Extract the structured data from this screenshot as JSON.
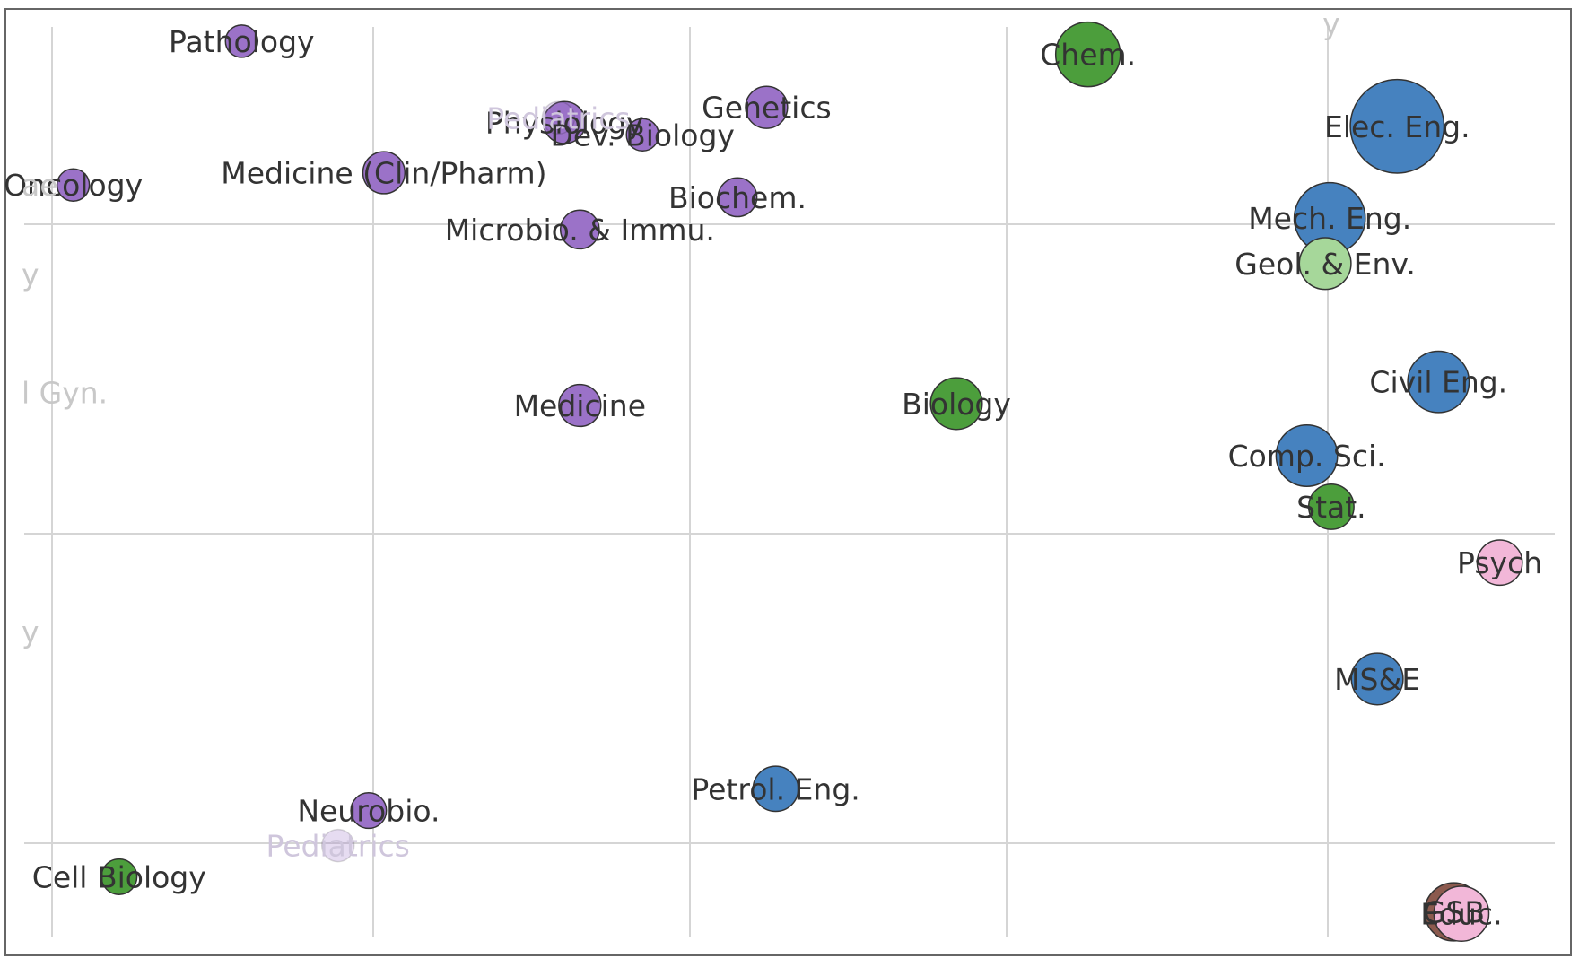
{
  "chart_data": {
    "type": "scatter",
    "title": "",
    "xlabel": "",
    "ylabel": "",
    "xlim": [
      0,
      100
    ],
    "ylim": [
      0,
      100
    ],
    "grid": true,
    "legend": "none",
    "group_colors": {
      "medicine": "#9b72c8",
      "engineering": "#4682bf",
      "science": "#4c9e3c",
      "earth": "#a6d79a",
      "psychology": "#f2b7d8",
      "business": "#8c5a4e"
    },
    "points": [
      {
        "label": "Pathology",
        "x": 14.2,
        "y": 96.6,
        "size": 1.0,
        "group": "medicine"
      },
      {
        "label": "Physiology",
        "x": 35.3,
        "y": 88.0,
        "size": 1.3,
        "group": "medicine"
      },
      {
        "label": "Pediatrics",
        "x": 34.9,
        "y": 88.5,
        "size": 1.0,
        "group": "medicine",
        "faded": true
      },
      {
        "label": "Dev. Biology",
        "x": 40.4,
        "y": 86.7,
        "size": 1.0,
        "group": "medicine"
      },
      {
        "label": "Genetics",
        "x": 48.5,
        "y": 89.6,
        "size": 1.3,
        "group": "medicine"
      },
      {
        "label": "Oncology",
        "x": 3.2,
        "y": 81.4,
        "size": 1.0,
        "group": "medicine"
      },
      {
        "label": "Medicine (Clin/Pharm)",
        "x": 23.5,
        "y": 82.7,
        "size": 1.3,
        "group": "medicine"
      },
      {
        "label": "Biochem.",
        "x": 46.6,
        "y": 80.1,
        "size": 1.2,
        "group": "medicine"
      },
      {
        "label": "Microbio. & Immu.",
        "x": 36.3,
        "y": 76.7,
        "size": 1.2,
        "group": "medicine"
      },
      {
        "label": "Medicine",
        "x": 36.3,
        "y": 58.1,
        "size": 1.3,
        "group": "medicine"
      },
      {
        "label": "Neurobio.",
        "x": 22.5,
        "y": 15.3,
        "size": 1.1,
        "group": "medicine"
      },
      {
        "label": "Pediatrics",
        "x": 20.5,
        "y": 11.6,
        "size": 1.0,
        "group": "medicine",
        "faded": true
      },
      {
        "label": "Chem.",
        "x": 69.5,
        "y": 95.2,
        "size": 2.0,
        "group": "science"
      },
      {
        "label": "Biology",
        "x": 60.9,
        "y": 58.3,
        "size": 1.6,
        "group": "science"
      },
      {
        "label": "Stat.",
        "x": 85.4,
        "y": 47.4,
        "size": 1.4,
        "group": "science"
      },
      {
        "label": "Cell Biology",
        "x": 6.2,
        "y": 8.3,
        "size": 1.1,
        "group": "science"
      },
      {
        "label": "Elec. Eng.",
        "x": 89.7,
        "y": 87.6,
        "size": 2.9,
        "group": "engineering"
      },
      {
        "label": "Mech. Eng.",
        "x": 85.3,
        "y": 77.9,
        "size": 2.2,
        "group": "engineering"
      },
      {
        "label": "Civil Eng.",
        "x": 92.4,
        "y": 60.6,
        "size": 1.9,
        "group": "engineering"
      },
      {
        "label": "Comp. Sci.",
        "x": 83.8,
        "y": 52.8,
        "size": 1.9,
        "group": "engineering"
      },
      {
        "label": "MS&E",
        "x": 88.4,
        "y": 29.2,
        "size": 1.6,
        "group": "engineering"
      },
      {
        "label": "Petrol. Eng.",
        "x": 49.1,
        "y": 17.6,
        "size": 1.4,
        "group": "engineering"
      },
      {
        "label": "Geol. & Env.",
        "x": 85.0,
        "y": 73.1,
        "size": 1.6,
        "group": "earth"
      },
      {
        "label": "Psych",
        "x": 96.4,
        "y": 41.5,
        "size": 1.4,
        "group": "psychology"
      },
      {
        "label": "GSB",
        "x": 93.4,
        "y": 4.6,
        "size": 1.8,
        "group": "business"
      },
      {
        "label": "Educ.",
        "x": 93.9,
        "y": 4.4,
        "size": 1.7,
        "group": "psychology"
      }
    ],
    "annotations_clipped": [
      {
        "label": "ae",
        "x": 0.0,
        "y": 81.4
      },
      {
        "label": "y",
        "x": 0.0,
        "y": 72.0
      },
      {
        "label": "l Gyn.",
        "x": 0.0,
        "y": 59.5,
        "faded": true
      },
      {
        "label": "y",
        "x": 0.0,
        "y": 34.2
      },
      {
        "label": "y",
        "x": 85.4,
        "y": 100.0
      }
    ]
  }
}
